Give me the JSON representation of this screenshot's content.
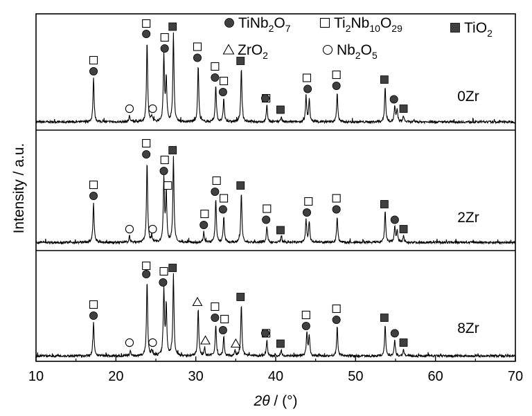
{
  "chart_data": {
    "type": "line",
    "subtype": "stacked-xrd-patterns",
    "xlabel": {
      "symbol": "2θ",
      "unit": " / (°)"
    },
    "ylabel": "Intensity / a.u.",
    "xlim": [
      10,
      70
    ],
    "xticks": [
      "10",
      "20",
      "30",
      "40",
      "50",
      "60",
      "70"
    ],
    "yticks": "none",
    "grid": false,
    "legend_placement": "top-right",
    "legend": [
      {
        "marker": "filled-circle",
        "base": "TiNb",
        "s1": "2",
        "mid": "O",
        "s2": "7"
      },
      {
        "marker": "open-square",
        "base": "Ti",
        "s1": "2",
        "mid": "Nb",
        "s2": "10",
        "tail": "O",
        "s3": "29"
      },
      {
        "marker": "filled-square",
        "base": "TiO",
        "s1": "2"
      },
      {
        "marker": "open-triangle",
        "base": "ZrO",
        "s1": "2"
      },
      {
        "marker": "open-circle",
        "base": "Nb",
        "s1": "2",
        "mid": "O",
        "s2": "5"
      }
    ],
    "series": [
      {
        "name": "0Zr",
        "peaks": [
          [
            17.2,
            0.42
          ],
          [
            21.7,
            0.06
          ],
          [
            23.9,
            0.78
          ],
          [
            24.5,
            0.05
          ],
          [
            26.0,
            0.64
          ],
          [
            26.3,
            0.42
          ],
          [
            27.2,
            0.85
          ],
          [
            30.3,
            0.55
          ],
          [
            32.5,
            0.36
          ],
          [
            33.5,
            0.22
          ],
          [
            35.7,
            0.52
          ],
          [
            38.9,
            0.16
          ],
          [
            40.7,
            0.05
          ],
          [
            43.8,
            0.25
          ],
          [
            44.2,
            0.22
          ],
          [
            47.7,
            0.28
          ],
          [
            53.7,
            0.34
          ],
          [
            54.9,
            0.15
          ],
          [
            55.2,
            0.12
          ],
          [
            56.0,
            0.06
          ]
        ],
        "markers": [
          {
            "x": 17.2,
            "type": "open-square"
          },
          {
            "x": 17.2,
            "type": "filled-circle"
          },
          {
            "x": 21.7,
            "type": "open-circle"
          },
          {
            "x": 24.6,
            "type": "open-circle"
          },
          {
            "x": 23.8,
            "type": "open-square"
          },
          {
            "x": 23.8,
            "type": "filled-circle"
          },
          {
            "x": 26.1,
            "type": "open-square"
          },
          {
            "x": 26.1,
            "type": "filled-circle"
          },
          {
            "x": 27.1,
            "type": "filled-square"
          },
          {
            "x": 30.2,
            "type": "open-square"
          },
          {
            "x": 30.2,
            "type": "filled-circle"
          },
          {
            "x": 32.4,
            "type": "open-square"
          },
          {
            "x": 32.4,
            "type": "filled-circle"
          },
          {
            "x": 33.5,
            "type": "open-square"
          },
          {
            "x": 33.4,
            "type": "filled-circle"
          },
          {
            "x": 35.6,
            "type": "filled-square"
          },
          {
            "x": 38.8,
            "type": "open-square"
          },
          {
            "x": 38.7,
            "type": "filled-circle"
          },
          {
            "x": 40.6,
            "type": "filled-square"
          },
          {
            "x": 43.9,
            "type": "open-square"
          },
          {
            "x": 44.0,
            "type": "filled-circle"
          },
          {
            "x": 47.6,
            "type": "open-square"
          },
          {
            "x": 47.6,
            "type": "filled-circle"
          },
          {
            "x": 53.6,
            "type": "filled-square"
          },
          {
            "x": 54.8,
            "type": "filled-circle"
          },
          {
            "x": 56.0,
            "type": "filled-square"
          }
        ]
      },
      {
        "name": "2Zr",
        "peaks": [
          [
            17.2,
            0.38
          ],
          [
            21.7,
            0.06
          ],
          [
            23.9,
            0.78
          ],
          [
            24.5,
            0.05
          ],
          [
            26.0,
            0.62
          ],
          [
            26.3,
            0.48
          ],
          [
            27.2,
            0.82
          ],
          [
            31.0,
            0.1
          ],
          [
            32.5,
            0.42
          ],
          [
            33.5,
            0.25
          ],
          [
            35.7,
            0.48
          ],
          [
            38.9,
            0.15
          ],
          [
            40.7,
            0.05
          ],
          [
            43.8,
            0.22
          ],
          [
            44.2,
            0.2
          ],
          [
            47.7,
            0.25
          ],
          [
            53.7,
            0.3
          ],
          [
            54.9,
            0.15
          ],
          [
            55.2,
            0.12
          ],
          [
            56.0,
            0.06
          ]
        ],
        "markers": [
          {
            "x": 17.2,
            "type": "open-square"
          },
          {
            "x": 17.2,
            "type": "filled-circle"
          },
          {
            "x": 21.7,
            "type": "open-circle"
          },
          {
            "x": 24.6,
            "type": "open-circle"
          },
          {
            "x": 23.8,
            "type": "open-square"
          },
          {
            "x": 23.8,
            "type": "filled-circle"
          },
          {
            "x": 26.1,
            "type": "open-square"
          },
          {
            "x": 26.0,
            "type": "filled-circle"
          },
          {
            "x": 26.5,
            "type": "open-square"
          },
          {
            "x": 27.1,
            "type": "filled-square"
          },
          {
            "x": 31.1,
            "type": "open-square"
          },
          {
            "x": 31.0,
            "type": "filled-circle"
          },
          {
            "x": 32.6,
            "type": "open-square"
          },
          {
            "x": 32.4,
            "type": "filled-circle"
          },
          {
            "x": 33.5,
            "type": "open-square"
          },
          {
            "x": 33.4,
            "type": "filled-circle"
          },
          {
            "x": 35.6,
            "type": "filled-square"
          },
          {
            "x": 38.9,
            "type": "open-square"
          },
          {
            "x": 38.8,
            "type": "filled-circle"
          },
          {
            "x": 40.6,
            "type": "filled-square"
          },
          {
            "x": 44.1,
            "type": "open-square"
          },
          {
            "x": 43.9,
            "type": "filled-circle"
          },
          {
            "x": 47.6,
            "type": "open-square"
          },
          {
            "x": 47.6,
            "type": "filled-circle"
          },
          {
            "x": 53.6,
            "type": "filled-square"
          },
          {
            "x": 54.9,
            "type": "filled-circle"
          },
          {
            "x": 56.0,
            "type": "filled-square"
          }
        ]
      },
      {
        "name": "8Zr",
        "peaks": [
          [
            17.2,
            0.32
          ],
          [
            21.8,
            0.05
          ],
          [
            23.9,
            0.72
          ],
          [
            24.5,
            0.05
          ],
          [
            26.0,
            0.64
          ],
          [
            26.3,
            0.48
          ],
          [
            27.2,
            0.78
          ],
          [
            30.3,
            0.45
          ],
          [
            31.1,
            0.08
          ],
          [
            32.5,
            0.3
          ],
          [
            33.5,
            0.18
          ],
          [
            34.9,
            0.05
          ],
          [
            35.7,
            0.5
          ],
          [
            38.9,
            0.15
          ],
          [
            40.7,
            0.05
          ],
          [
            43.9,
            0.22
          ],
          [
            44.2,
            0.2
          ],
          [
            47.7,
            0.28
          ],
          [
            53.7,
            0.3
          ],
          [
            54.9,
            0.15
          ],
          [
            56.0,
            0.06
          ]
        ],
        "markers": [
          {
            "x": 17.2,
            "type": "open-square"
          },
          {
            "x": 17.2,
            "type": "filled-circle"
          },
          {
            "x": 21.7,
            "type": "open-circle"
          },
          {
            "x": 24.6,
            "type": "open-circle"
          },
          {
            "x": 23.8,
            "type": "open-square"
          },
          {
            "x": 23.8,
            "type": "filled-circle"
          },
          {
            "x": 26.0,
            "type": "open-square"
          },
          {
            "x": 25.9,
            "type": "filled-circle"
          },
          {
            "x": 27.1,
            "type": "filled-square"
          },
          {
            "x": 30.2,
            "type": "open-triangle"
          },
          {
            "x": 31.2,
            "type": "open-triangle"
          },
          {
            "x": 32.4,
            "type": "open-square"
          },
          {
            "x": 32.4,
            "type": "filled-circle"
          },
          {
            "x": 33.6,
            "type": "open-square"
          },
          {
            "x": 33.4,
            "type": "filled-circle"
          },
          {
            "x": 35.0,
            "type": "open-triangle"
          },
          {
            "x": 35.6,
            "type": "filled-square"
          },
          {
            "x": 38.8,
            "type": "open-square"
          },
          {
            "x": 38.7,
            "type": "filled-circle"
          },
          {
            "x": 40.6,
            "type": "filled-square"
          },
          {
            "x": 43.8,
            "type": "open-square"
          },
          {
            "x": 43.8,
            "type": "filled-circle"
          },
          {
            "x": 47.6,
            "type": "open-square"
          },
          {
            "x": 47.6,
            "type": "filled-circle"
          },
          {
            "x": 53.6,
            "type": "filled-square"
          },
          {
            "x": 54.9,
            "type": "filled-circle"
          },
          {
            "x": 56.0,
            "type": "filled-square"
          }
        ]
      }
    ],
    "colors": {
      "line": "#000000",
      "filled_marker": "#404040"
    }
  }
}
